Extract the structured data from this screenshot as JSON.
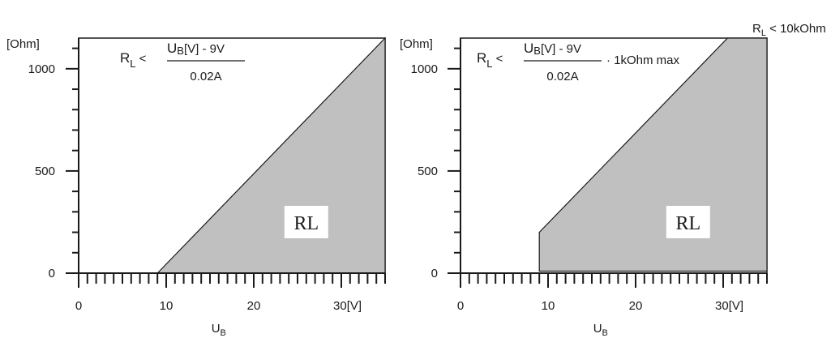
{
  "corner_note": {
    "base": "R",
    "sub": "L",
    "rest": " < 10kOhm"
  },
  "chart_data": [
    {
      "type": "area",
      "title": "",
      "xlabel": {
        "base": "U",
        "sub": "B"
      },
      "ylabel": "[Ohm]",
      "x_unit_suffix": "[V]",
      "xlim": [
        0,
        35
      ],
      "ylim": [
        0,
        1150
      ],
      "x_major_ticks": [
        0,
        10,
        20,
        30
      ],
      "y_major_ticks": [
        0,
        500,
        1000
      ],
      "x_minor_step": 1,
      "y_minor_step": 100,
      "formula": {
        "lhs_base": "R",
        "lhs_sub": "L",
        "relation": "<",
        "num_base": "U",
        "num_sub": "B",
        "num_rest": "[V] - 9V",
        "denominator": "0.02A",
        "suffix": ""
      },
      "region_label": "RL",
      "region_label_at": [
        26,
        250
      ],
      "series": [
        {
          "name": "",
          "points": [
            [
              9,
              0
            ],
            [
              35,
              1150
            ],
            [
              35,
              0
            ]
          ]
        }
      ]
    },
    {
      "type": "area",
      "title": "",
      "xlabel": {
        "base": "U",
        "sub": "B"
      },
      "ylabel": "[Ohm]",
      "x_unit_suffix": "[V]",
      "xlim": [
        0,
        35
      ],
      "ylim": [
        0,
        1150
      ],
      "x_major_ticks": [
        0,
        10,
        20,
        30
      ],
      "y_major_ticks": [
        0,
        500,
        1000
      ],
      "x_minor_step": 1,
      "y_minor_step": 100,
      "formula": {
        "lhs_base": "R",
        "lhs_sub": "L",
        "relation": "<",
        "num_base": "U",
        "num_sub": "B",
        "num_rest": "[V] - 9V",
        "denominator": "0.02A",
        "suffix": " · 1kOhm max"
      },
      "region_label": "RL",
      "region_label_at": [
        26,
        250
      ],
      "series": [
        {
          "name": "",
          "points": [
            [
              9,
              10
            ],
            [
              9,
              200
            ],
            [
              30.5,
              1150
            ],
            [
              35,
              1150
            ],
            [
              35,
              10
            ]
          ]
        }
      ]
    }
  ]
}
